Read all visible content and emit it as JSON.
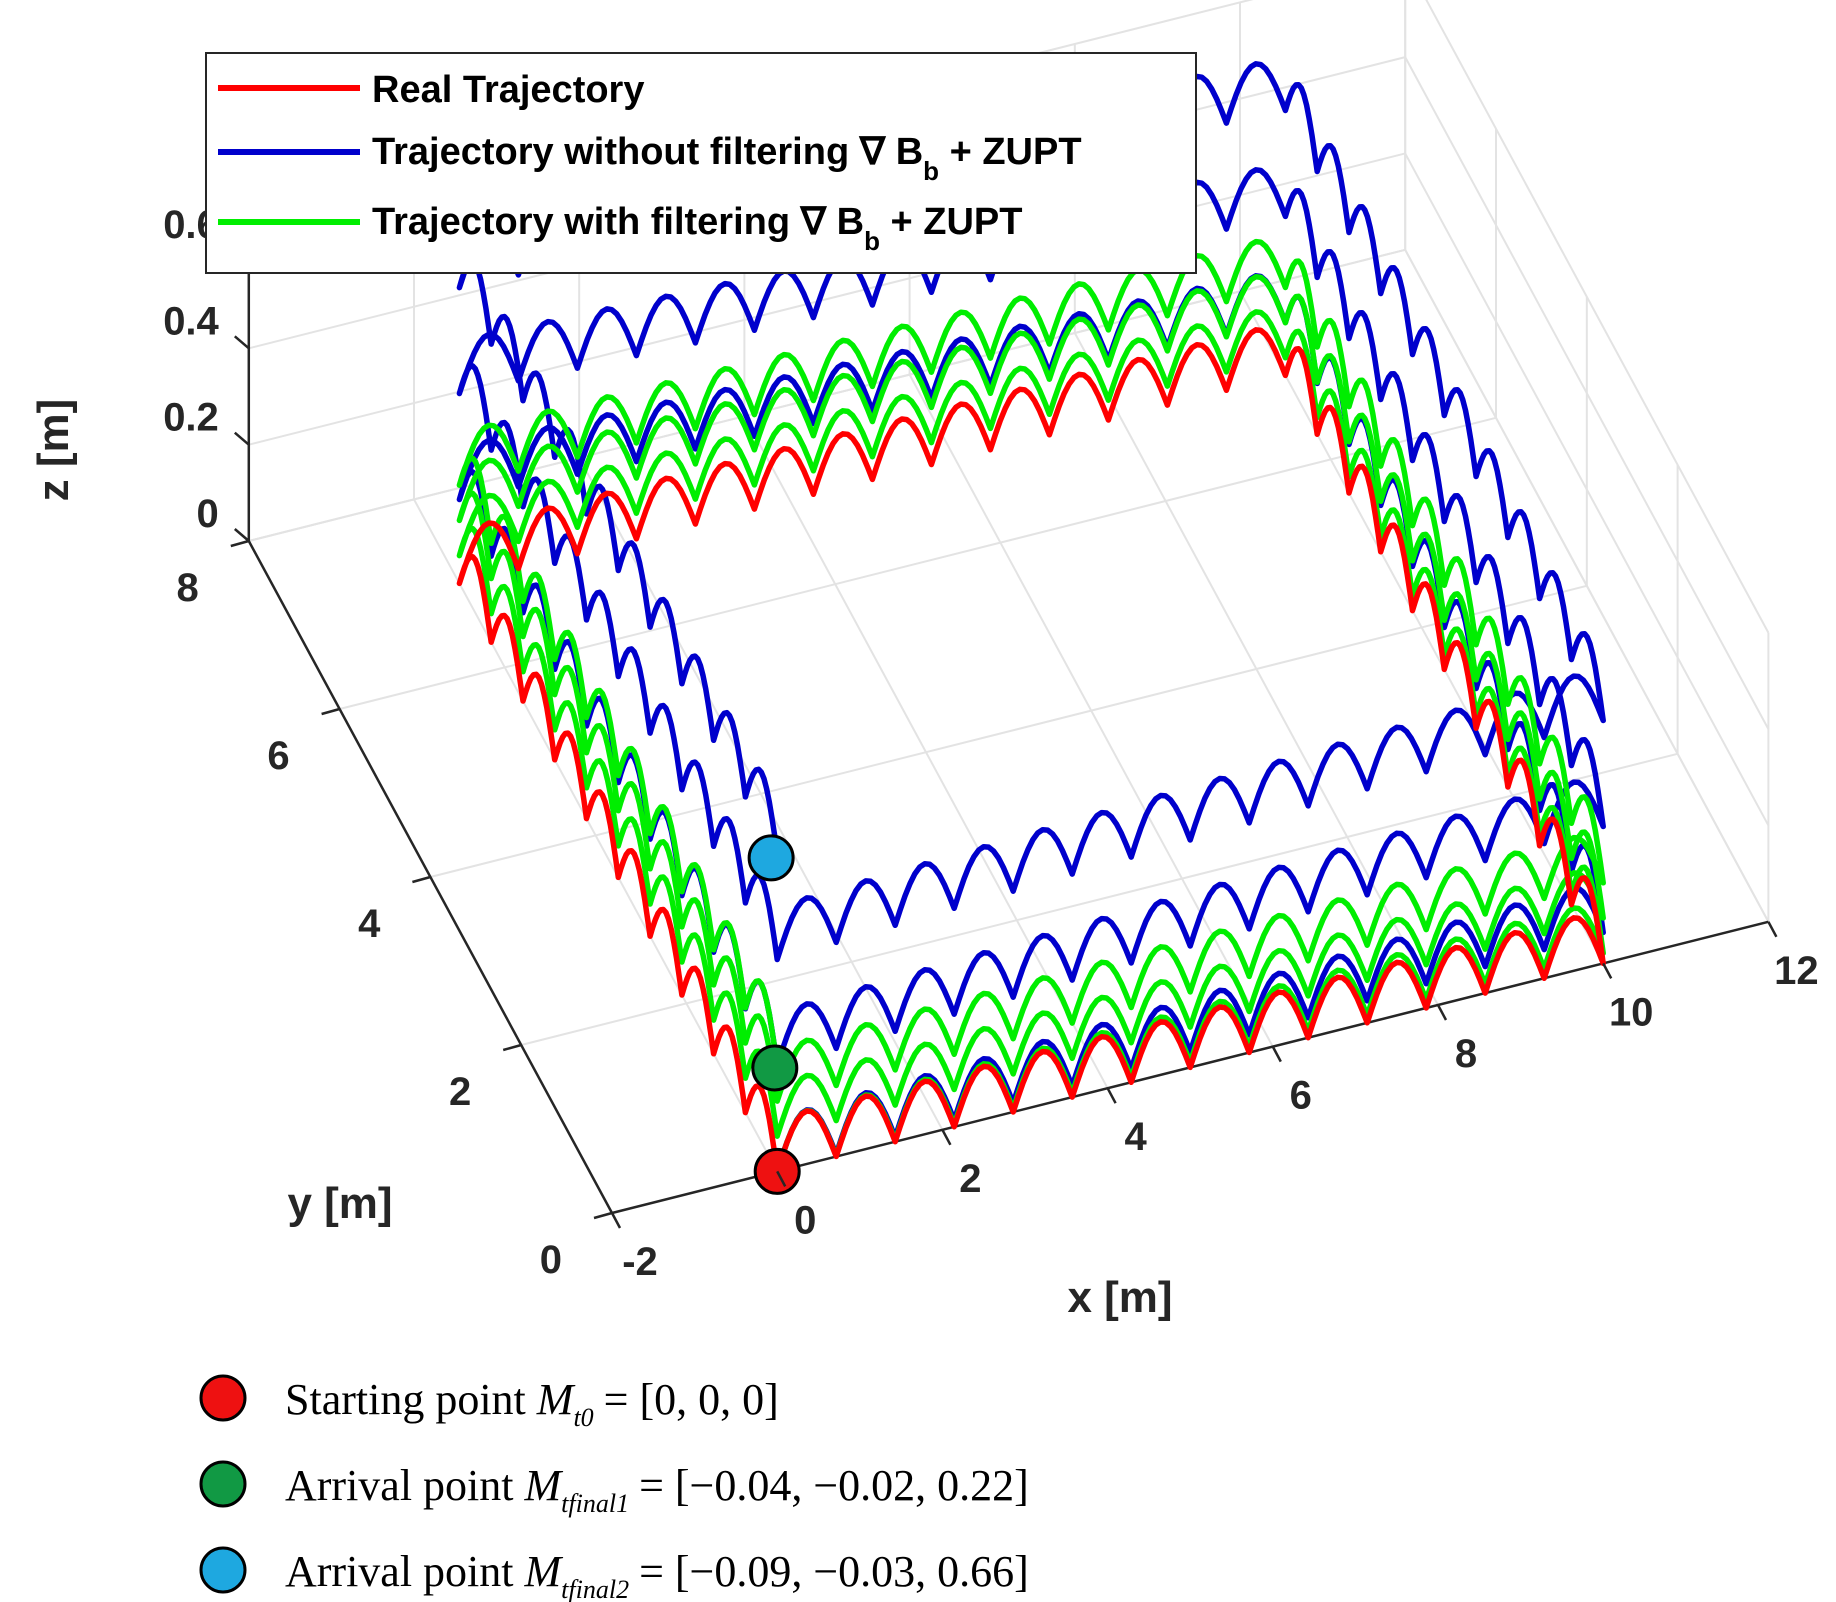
{
  "chart_data": {
    "type": "line3d",
    "title": "",
    "xlabel": "x [m]",
    "ylabel": "y [m]",
    "zlabel": "z [m]",
    "xlim": [
      -2,
      12
    ],
    "ylim": [
      0,
      8
    ],
    "zlim": [
      0,
      0.6
    ],
    "x_ticks": [
      "-2",
      "0",
      "2",
      "4",
      "6",
      "8",
      "10",
      "12"
    ],
    "y_ticks": [
      "0",
      "2",
      "4",
      "6",
      "8"
    ],
    "z_ticks": [
      "0",
      "0.2",
      "0.4",
      "0.6"
    ],
    "grid": true,
    "legend_position": "top-left",
    "legend": {
      "real": "Real Trajectory",
      "without_main": "Trajectory without filtering ∇ B",
      "without_sub": "b",
      "without_tail": " + ZUPT",
      "with_main": "Trajectory with filtering ∇ B",
      "with_sub": "b",
      "with_tail": " + ZUPT"
    },
    "path": {
      "description_corners": [
        [
          0,
          0
        ],
        [
          10,
          0
        ],
        [
          10,
          7
        ],
        [
          0,
          7
        ]
      ],
      "laps": 3,
      "step_arch_height": 0.11
    },
    "series": [
      {
        "name": "Real Trajectory",
        "color": "#ff0000",
        "laps": 3,
        "z_drift_per_lap": 0.0,
        "z_offset": 0.0
      },
      {
        "name": "Trajectory with filtering ∇ Bb + ZUPT",
        "color": "#00ee00",
        "laps": 3,
        "z_drift_per_lap": 0.073,
        "z_offset": 0.0
      },
      {
        "name": "Trajectory without filtering ∇ Bb + ZUPT",
        "color": "#0000cc",
        "laps": 3,
        "z_drift_per_lap": 0.22,
        "z_offset": 0.0
      }
    ],
    "markers": [
      {
        "name": "Starting point",
        "label_prefix": "Starting point ",
        "symbol": "M",
        "subscript": "t0",
        "value": "= [0, 0, 0]",
        "color": "#ee1111",
        "x": 0,
        "y": 0,
        "z": 0
      },
      {
        "name": "Arrival point 1",
        "label_prefix": "Arrival point ",
        "symbol": "M",
        "subscript": "tfinal1",
        "value": "= [−0.04, −0.02, 0.22]",
        "color": "#119944",
        "x": -0.04,
        "y": -0.02,
        "z": 0.22
      },
      {
        "name": "Arrival point 2",
        "label_prefix": "Arrival point ",
        "symbol": "M",
        "subscript": "tfinal2",
        "value": "= [−0.09, −0.03, 0.66]",
        "color": "#1ea8e0",
        "x": -0.09,
        "y": -0.03,
        "z": 0.66
      }
    ]
  }
}
